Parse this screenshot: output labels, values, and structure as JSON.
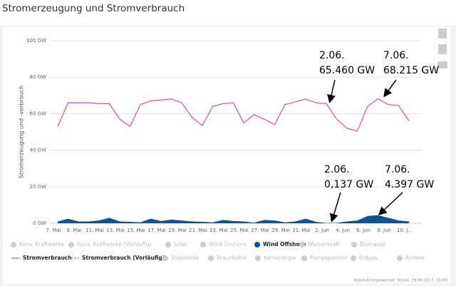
{
  "chart_data": {
    "type": "line-area",
    "title": "Stromerzeugung und Stromverbrauch",
    "y_label": "Stromerzeugung und -verbrauch",
    "categories": [
      "7. Mai",
      null,
      "9. Mai",
      null,
      "11. Mai",
      null,
      "13. Mai",
      null,
      "15. Mai",
      null,
      "17. Mai",
      null,
      "19. Mai",
      null,
      "21. Mai",
      null,
      "23. Mai",
      null,
      "25. Mai",
      null,
      "27. Mai",
      null,
      "29. Mai",
      null,
      "31. Mai",
      null,
      "2. Jun",
      null,
      "4. Jun",
      null,
      "6. Jun",
      null,
      "8. Jun",
      null,
      "10. J..."
    ],
    "ylim": [
      0,
      100
    ],
    "yticks": [
      {
        "value": 0,
        "label": "0 GW"
      },
      {
        "value": 20,
        "label": "20 GW"
      },
      {
        "value": 40,
        "label": "40 GW"
      },
      {
        "value": 60,
        "label": "60 GW"
      },
      {
        "value": 80,
        "label": "80 GW"
      },
      {
        "value": 100,
        "label": "100 GW"
      }
    ],
    "grid": true,
    "series": [
      {
        "name": "Konv. Kraftwerke",
        "marker": "circle",
        "visible": false
      },
      {
        "name": "Konv. Kraftwerke (Vorläufig)",
        "marker": "circle",
        "visible": false
      },
      {
        "name": "Solar",
        "marker": "circle",
        "visible": false
      },
      {
        "name": "Wind Onshore",
        "marker": "circle",
        "visible": false
      },
      {
        "name": "Wind Offshore",
        "marker": "circle",
        "visible": true,
        "kind": "area",
        "color": "#0b5591",
        "values": [
          1,
          2.5,
          1,
          1,
          1.5,
          3,
          1,
          0.8,
          0.5,
          2.5,
          1.2,
          2,
          1.5,
          1,
          0.8,
          0.5,
          1.8,
          1.2,
          1,
          0.3,
          1.8,
          1.5,
          0.5,
          1,
          2.5,
          0.8,
          0.137,
          0.2,
          1,
          1.5,
          4,
          4.397,
          3,
          1.5,
          1
        ]
      },
      {
        "name": "Wasserkraft",
        "marker": "circle",
        "visible": false
      },
      {
        "name": "Biomasse",
        "marker": "circle",
        "visible": false
      },
      {
        "name": "Stromverbrauch",
        "marker": "line",
        "visible": true,
        "kind": "line",
        "color": "#d6609e",
        "values": [
          53,
          66,
          66,
          66,
          65.5,
          65.5,
          57,
          53,
          65,
          67,
          67.5,
          68,
          66,
          58,
          53.5,
          64,
          65.5,
          66,
          55,
          59.5,
          57,
          54,
          65,
          66.5,
          68,
          66,
          65.46,
          57,
          52,
          50.5,
          64,
          68.215,
          65,
          64.5,
          56
        ]
      },
      {
        "name": "Stromverbrauch (Vorläufig)",
        "marker": "dashed",
        "visible": true,
        "color": "#d6609e"
      },
      {
        "name": "Steinkohle",
        "marker": "circle",
        "visible": false
      },
      {
        "name": "Braunkohle",
        "marker": "circle",
        "visible": false
      },
      {
        "name": "Kernenergie",
        "marker": "circle",
        "visible": false
      },
      {
        "name": "Pumpspeicher",
        "marker": "circle",
        "visible": false
      },
      {
        "name": "Erdgas",
        "marker": "circle",
        "visible": false
      },
      {
        "name": "Andere",
        "marker": "circle",
        "visible": false
      }
    ],
    "annotations": [
      {
        "date": "2.06.",
        "value": "65.460 GW"
      },
      {
        "date": "7.06.",
        "value": "68.215 GW"
      },
      {
        "date": "2.06.",
        "value": "0,137 GW"
      },
      {
        "date": "7.06.",
        "value": "4.397 GW"
      }
    ],
    "source": "Agora Energiewende; Stand: 29.08.2017, 10:00"
  }
}
